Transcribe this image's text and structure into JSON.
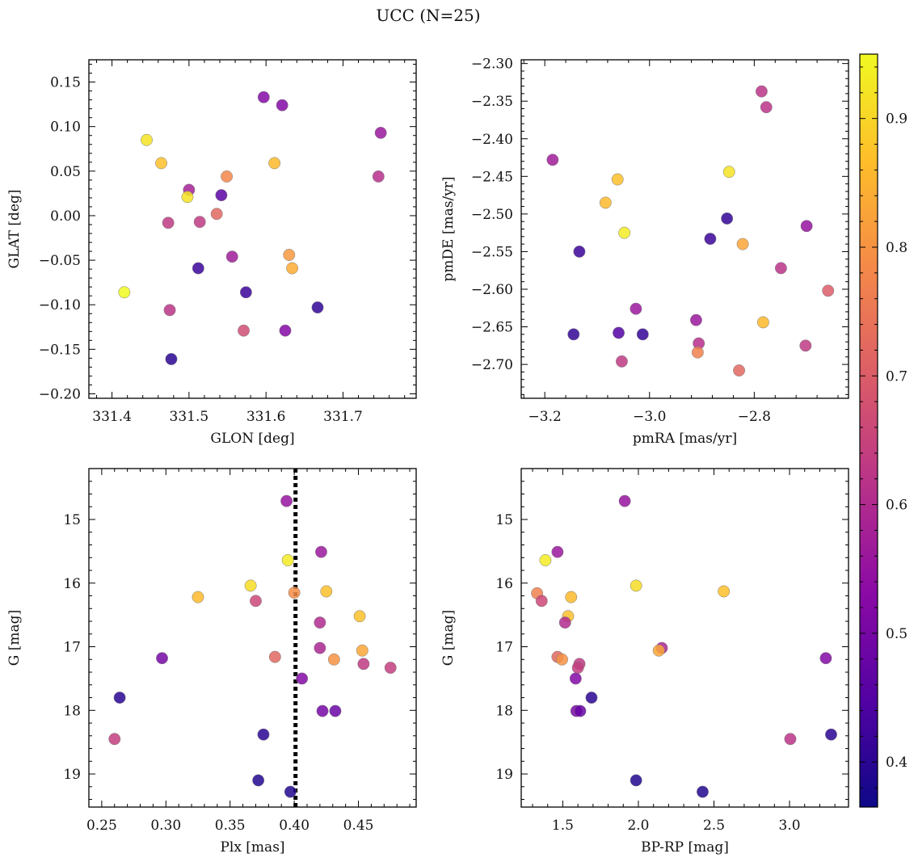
{
  "figure": {
    "title": "UCC (N=25)"
  },
  "colorbar": {
    "range": [
      0.365,
      0.95
    ],
    "ticks": [
      0.4,
      0.5,
      0.6,
      0.7,
      0.8,
      0.9
    ],
    "colormap": [
      "#0d0887",
      "#5302a3",
      "#8b0aa5",
      "#b83289",
      "#db5c68",
      "#f48849",
      "#febd2a",
      "#f0f921"
    ]
  },
  "chart_data": [
    {
      "type": "scatter",
      "xlabel": "GLON [deg]",
      "ylabel": "GLAT [deg]",
      "xlim": [
        331.37,
        331.795
      ],
      "ylim": [
        -0.205,
        0.175
      ],
      "xticks": [
        331.4,
        331.5,
        331.6,
        331.7
      ],
      "yticks": [
        -0.2,
        -0.15,
        -0.1,
        -0.05,
        0.0,
        0.05,
        0.1,
        0.15
      ],
      "points": [
        {
          "x": 331.597,
          "y": 0.133,
          "c": 0.52
        },
        {
          "x": 331.621,
          "y": 0.124,
          "c": 0.52
        },
        {
          "x": 331.749,
          "y": 0.093,
          "c": 0.56
        },
        {
          "x": 331.445,
          "y": 0.085,
          "c": 0.92
        },
        {
          "x": 331.464,
          "y": 0.059,
          "c": 0.87
        },
        {
          "x": 331.611,
          "y": 0.059,
          "c": 0.86
        },
        {
          "x": 331.746,
          "y": 0.044,
          "c": 0.61
        },
        {
          "x": 331.549,
          "y": 0.044,
          "c": 0.78
        },
        {
          "x": 331.5,
          "y": 0.029,
          "c": 0.58
        },
        {
          "x": 331.498,
          "y": 0.021,
          "c": 0.92
        },
        {
          "x": 331.542,
          "y": 0.023,
          "c": 0.46
        },
        {
          "x": 331.536,
          "y": 0.002,
          "c": 0.72
        },
        {
          "x": 331.473,
          "y": -0.008,
          "c": 0.63
        },
        {
          "x": 331.514,
          "y": -0.007,
          "c": 0.63
        },
        {
          "x": 331.63,
          "y": -0.044,
          "c": 0.81
        },
        {
          "x": 331.556,
          "y": -0.046,
          "c": 0.57
        },
        {
          "x": 331.634,
          "y": -0.059,
          "c": 0.84
        },
        {
          "x": 331.512,
          "y": -0.059,
          "c": 0.42
        },
        {
          "x": 331.574,
          "y": -0.086,
          "c": 0.42
        },
        {
          "x": 331.416,
          "y": -0.086,
          "c": 0.95
        },
        {
          "x": 331.667,
          "y": -0.103,
          "c": 0.41
        },
        {
          "x": 331.475,
          "y": -0.106,
          "c": 0.62
        },
        {
          "x": 331.571,
          "y": -0.129,
          "c": 0.67
        },
        {
          "x": 331.625,
          "y": -0.129,
          "c": 0.52
        },
        {
          "x": 331.477,
          "y": -0.161,
          "c": 0.4
        }
      ]
    },
    {
      "type": "scatter",
      "xlabel": "pmRA [mas/yr]",
      "ylabel": "pmDE [mas/yr]",
      "xlim": [
        -3.245,
        -2.62
      ],
      "ylim": [
        -2.745,
        -2.295
      ],
      "xticks": [
        -3.2,
        -3.0,
        -2.8
      ],
      "yticks": [
        -2.7,
        -2.65,
        -2.6,
        -2.55,
        -2.5,
        -2.45,
        -2.4,
        -2.35,
        -2.3
      ],
      "points": [
        {
          "x": -2.786,
          "y": -2.337,
          "c": 0.62
        },
        {
          "x": -2.777,
          "y": -2.358,
          "c": 0.62
        },
        {
          "x": -3.185,
          "y": -2.428,
          "c": 0.57
        },
        {
          "x": -2.848,
          "y": -2.444,
          "c": 0.92
        },
        {
          "x": -3.061,
          "y": -2.454,
          "c": 0.87
        },
        {
          "x": -3.084,
          "y": -2.485,
          "c": 0.86
        },
        {
          "x": -2.852,
          "y": -2.506,
          "c": 0.41
        },
        {
          "x": -2.7,
          "y": -2.516,
          "c": 0.55
        },
        {
          "x": -3.048,
          "y": -2.525,
          "c": 0.93
        },
        {
          "x": -2.884,
          "y": -2.533,
          "c": 0.42
        },
        {
          "x": -2.822,
          "y": -2.54,
          "c": 0.83
        },
        {
          "x": -3.134,
          "y": -2.55,
          "c": 0.42
        },
        {
          "x": -2.749,
          "y": -2.572,
          "c": 0.62
        },
        {
          "x": -2.659,
          "y": -2.602,
          "c": 0.7
        },
        {
          "x": -3.026,
          "y": -2.626,
          "c": 0.56
        },
        {
          "x": -2.911,
          "y": -2.641,
          "c": 0.56
        },
        {
          "x": -2.783,
          "y": -2.644,
          "c": 0.86
        },
        {
          "x": -3.145,
          "y": -2.66,
          "c": 0.41
        },
        {
          "x": -3.059,
          "y": -2.658,
          "c": 0.45
        },
        {
          "x": -3.013,
          "y": -2.66,
          "c": 0.41
        },
        {
          "x": -2.906,
          "y": -2.672,
          "c": 0.61
        },
        {
          "x": -2.702,
          "y": -2.675,
          "c": 0.63
        },
        {
          "x": -2.908,
          "y": -2.684,
          "c": 0.77
        },
        {
          "x": -3.053,
          "y": -2.696,
          "c": 0.63
        },
        {
          "x": -2.829,
          "y": -2.708,
          "c": 0.72
        }
      ]
    },
    {
      "type": "scatter",
      "xlabel": "Plx [mas]",
      "ylabel": "G [mag]",
      "xlim": [
        0.24,
        0.495
      ],
      "ylim": [
        19.52,
        14.2
      ],
      "y_inverted": true,
      "xticks": [
        0.25,
        0.3,
        0.35,
        0.4,
        0.45
      ],
      "yticks": [
        15,
        16,
        17,
        18,
        19
      ],
      "vline": {
        "x": 0.401,
        "style": "dotted"
      },
      "points": [
        {
          "x": 0.394,
          "y": 14.71,
          "c": 0.55
        },
        {
          "x": 0.421,
          "y": 15.51,
          "c": 0.56
        },
        {
          "x": 0.395,
          "y": 15.64,
          "c": 0.93
        },
        {
          "x": 0.366,
          "y": 16.04,
          "c": 0.91
        },
        {
          "x": 0.425,
          "y": 16.13,
          "c": 0.87
        },
        {
          "x": 0.4,
          "y": 16.15,
          "c": 0.79
        },
        {
          "x": 0.325,
          "y": 16.22,
          "c": 0.86
        },
        {
          "x": 0.37,
          "y": 16.28,
          "c": 0.66
        },
        {
          "x": 0.451,
          "y": 16.52,
          "c": 0.87
        },
        {
          "x": 0.42,
          "y": 16.62,
          "c": 0.6
        },
        {
          "x": 0.42,
          "y": 17.02,
          "c": 0.59
        },
        {
          "x": 0.453,
          "y": 17.06,
          "c": 0.83
        },
        {
          "x": 0.385,
          "y": 17.16,
          "c": 0.72
        },
        {
          "x": 0.297,
          "y": 17.18,
          "c": 0.5
        },
        {
          "x": 0.431,
          "y": 17.2,
          "c": 0.8
        },
        {
          "x": 0.454,
          "y": 17.27,
          "c": 0.63
        },
        {
          "x": 0.475,
          "y": 17.33,
          "c": 0.64
        },
        {
          "x": 0.406,
          "y": 17.5,
          "c": 0.52
        },
        {
          "x": 0.264,
          "y": 17.8,
          "c": 0.4
        },
        {
          "x": 0.422,
          "y": 18.01,
          "c": 0.5
        },
        {
          "x": 0.432,
          "y": 18.01,
          "c": 0.48
        },
        {
          "x": 0.376,
          "y": 18.38,
          "c": 0.4
        },
        {
          "x": 0.26,
          "y": 18.45,
          "c": 0.64
        },
        {
          "x": 0.372,
          "y": 19.1,
          "c": 0.39
        },
        {
          "x": 0.397,
          "y": 19.28,
          "c": 0.39
        }
      ]
    },
    {
      "type": "scatter",
      "xlabel": "BP-RP [mag]",
      "ylabel": "G [mag]",
      "xlim": [
        1.225,
        3.39
      ],
      "ylim": [
        19.52,
        14.2
      ],
      "y_inverted": true,
      "xticks": [
        1.5,
        2.0,
        2.5,
        3.0
      ],
      "yticks": [
        15,
        16,
        17,
        18,
        19
      ],
      "points": [
        {
          "x": 1.91,
          "y": 14.71,
          "c": 0.55
        },
        {
          "x": 1.465,
          "y": 15.51,
          "c": 0.56
        },
        {
          "x": 1.385,
          "y": 15.64,
          "c": 0.93
        },
        {
          "x": 1.985,
          "y": 16.04,
          "c": 0.91
        },
        {
          "x": 2.565,
          "y": 16.13,
          "c": 0.87
        },
        {
          "x": 1.33,
          "y": 16.16,
          "c": 0.77
        },
        {
          "x": 1.555,
          "y": 16.22,
          "c": 0.86
        },
        {
          "x": 1.36,
          "y": 16.28,
          "c": 0.66
        },
        {
          "x": 1.535,
          "y": 16.52,
          "c": 0.87
        },
        {
          "x": 1.515,
          "y": 16.62,
          "c": 0.6
        },
        {
          "x": 2.155,
          "y": 17.02,
          "c": 0.59
        },
        {
          "x": 2.135,
          "y": 17.06,
          "c": 0.83
        },
        {
          "x": 1.465,
          "y": 17.16,
          "c": 0.72
        },
        {
          "x": 3.24,
          "y": 17.18,
          "c": 0.52
        },
        {
          "x": 1.495,
          "y": 17.2,
          "c": 0.8
        },
        {
          "x": 1.61,
          "y": 17.27,
          "c": 0.63
        },
        {
          "x": 1.6,
          "y": 17.33,
          "c": 0.64
        },
        {
          "x": 1.585,
          "y": 17.5,
          "c": 0.52
        },
        {
          "x": 1.69,
          "y": 17.8,
          "c": 0.4
        },
        {
          "x": 1.59,
          "y": 18.01,
          "c": 0.5
        },
        {
          "x": 1.615,
          "y": 18.01,
          "c": 0.48
        },
        {
          "x": 3.275,
          "y": 18.38,
          "c": 0.4
        },
        {
          "x": 3.005,
          "y": 18.45,
          "c": 0.62
        },
        {
          "x": 1.985,
          "y": 19.1,
          "c": 0.39
        },
        {
          "x": 2.425,
          "y": 19.28,
          "c": 0.39
        }
      ]
    }
  ]
}
